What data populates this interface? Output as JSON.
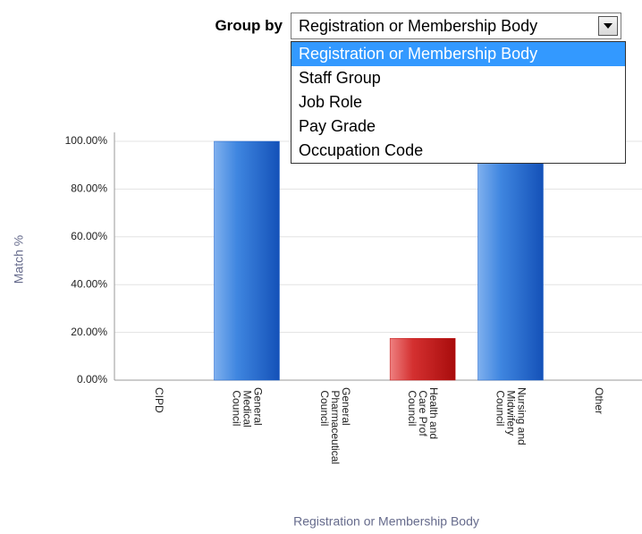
{
  "ui": {
    "group_by_label": "Group by",
    "selected": "Registration or Membership Body",
    "options": [
      "Registration or Membership Body",
      "Staff Group",
      "Job Role",
      "Pay Grade",
      "Occupation Code"
    ]
  },
  "chart_data": {
    "type": "bar",
    "categories": [
      "CIPD",
      "General Medical Council",
      "General Pharmaceutical Council",
      "Health and Care Prof Council",
      "Nursing and Midwifery Council",
      "Other"
    ],
    "values": [
      0,
      100,
      0,
      17.5,
      100,
      0
    ],
    "colors": [
      "#1f63c9",
      "#1f63c9",
      "#1f63c9",
      "#c41818",
      "#1f63c9",
      "#1f63c9"
    ],
    "x_label": "Registration or Membership Body",
    "y_label": "Match %",
    "ylim": [
      0,
      100
    ],
    "yticks": [
      {
        "value": 0,
        "label": "0.00%"
      },
      {
        "value": 20,
        "label": "20.00%"
      },
      {
        "value": 40,
        "label": "40.00%"
      },
      {
        "value": 60,
        "label": "60.00%"
      },
      {
        "value": 80,
        "label": "80.00%"
      },
      {
        "value": 100,
        "label": "100.00%"
      }
    ],
    "grid": true
  }
}
